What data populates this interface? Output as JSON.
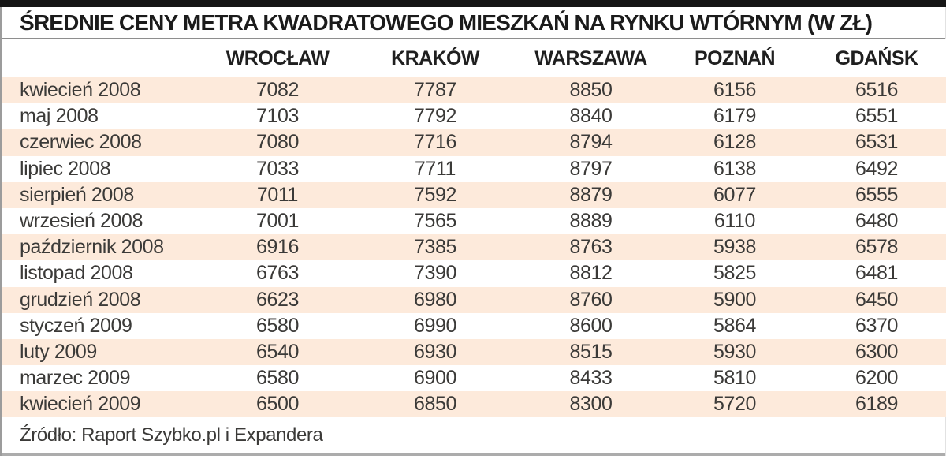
{
  "title": "ŚREDNIE CENY METRA KWADRATOWEGO MIESZKAŃ NA RYNKU WTÓRNYM (W ZŁ)",
  "source": "Źródło: Raport Szybko.pl i Expandera",
  "colors": {
    "stripe": "#fdeadb",
    "top_bar": "#151515",
    "divider": "#8e8e8e",
    "text": "#3b3a38",
    "heading_text": "#1b1b1b"
  },
  "chart_data": {
    "type": "table",
    "title": "ŚREDNIE CENY METRA KWADRATOWEGO MIESZKAŃ NA RYNKU WTÓRNYM (W ZŁ)",
    "columns": [
      "",
      "WROCŁAW",
      "KRAKÓW",
      "WARSZAWA",
      "POZNAŃ",
      "GDAŃSK"
    ],
    "rows": [
      [
        "kwiecień 2008",
        7082,
        7787,
        8850,
        6156,
        6516
      ],
      [
        "maj 2008",
        7103,
        7792,
        8840,
        6179,
        6551
      ],
      [
        "czerwiec 2008",
        7080,
        7716,
        8794,
        6128,
        6531
      ],
      [
        "lipiec 2008",
        7033,
        7711,
        8797,
        6138,
        6492
      ],
      [
        "sierpień 2008",
        7011,
        7592,
        8879,
        6077,
        6555
      ],
      [
        "wrzesień 2008",
        7001,
        7565,
        8889,
        6110,
        6480
      ],
      [
        "październik 2008",
        6916,
        7385,
        8763,
        5938,
        6578
      ],
      [
        "listopad 2008",
        6763,
        7390,
        8812,
        5825,
        6481
      ],
      [
        "grudzień 2008",
        6623,
        6980,
        8760,
        5900,
        6450
      ],
      [
        "styczeń 2009",
        6580,
        6990,
        8600,
        5864,
        6370
      ],
      [
        "luty 2009",
        6540,
        6930,
        8515,
        5930,
        6300
      ],
      [
        "marzec 2009",
        6580,
        6900,
        8433,
        5810,
        6200
      ],
      [
        "kwiecień 2009",
        6500,
        6850,
        8300,
        5720,
        6189
      ]
    ],
    "source_note": "Źródło: Raport Szybko.pl i Expandera",
    "legend_position": "none",
    "grid": false
  }
}
